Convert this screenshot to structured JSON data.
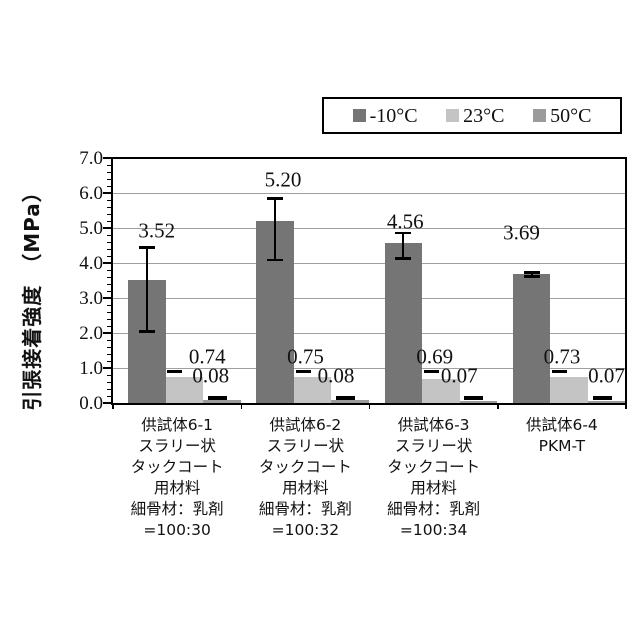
{
  "legend": {
    "items": [
      {
        "label": "-10°C",
        "color": "#757575"
      },
      {
        "label": "23°C",
        "color": "#c4c4c4"
      },
      {
        "label": "50°C",
        "color": "#9b9b9b"
      }
    ]
  },
  "y_axis": {
    "title": "引張接着強度　（MPa）",
    "tick_labels": [
      "7.0",
      "6.0",
      "5.0",
      "4.0",
      "3.0",
      "2.0",
      "1.0",
      "0.0"
    ]
  },
  "chart_data": {
    "type": "bar",
    "title": "",
    "xlabel": "",
    "ylabel": "引張接着強度（MPa）",
    "ylim": [
      0,
      7
    ],
    "y_tick_step": 1.0,
    "y_minor_tick_step": 0.2,
    "grid": true,
    "legend_position": "top-right",
    "categories": [
      [
        "供試体6-1",
        "スラリー状",
        "タックコート",
        "用材料",
        "細骨材：乳剤",
        "=100:30"
      ],
      [
        "供試体6-2",
        "スラリー状",
        "タックコート",
        "用材料",
        "細骨材：乳剤",
        "=100:32"
      ],
      [
        "供試体6-3",
        "スラリー状",
        "タックコート",
        "用材料",
        "細骨材：乳剤",
        "=100:34"
      ],
      [
        "供試体6-4",
        "PKM-T"
      ]
    ],
    "series": [
      {
        "name": "-10°C",
        "color": "#757575",
        "values": [
          3.52,
          5.2,
          4.56,
          3.69
        ],
        "value_labels": [
          "3.52",
          "5.20",
          "4.56",
          "3.69"
        ],
        "error_bars": [
          {
            "top": 4.45,
            "bottom": 2.05
          },
          {
            "top": 5.85,
            "bottom": 4.1
          },
          {
            "top": 4.86,
            "bottom": 4.14
          },
          {
            "top": 3.74,
            "bottom": 3.62
          }
        ]
      },
      {
        "name": "23°C",
        "color": "#c4c4c4",
        "values": [
          0.74,
          0.75,
          0.69,
          0.73
        ],
        "value_labels": [
          "0.74",
          "0.75",
          "0.69",
          "0.73"
        ],
        "error_cap_top": 0.9
      },
      {
        "name": "50°C",
        "color": "#9b9b9b",
        "values": [
          0.08,
          0.08,
          0.07,
          0.07
        ],
        "value_labels": [
          "0.08",
          "0.08",
          "0.07",
          "0.07"
        ],
        "error_cap_top": 0.13
      }
    ]
  }
}
